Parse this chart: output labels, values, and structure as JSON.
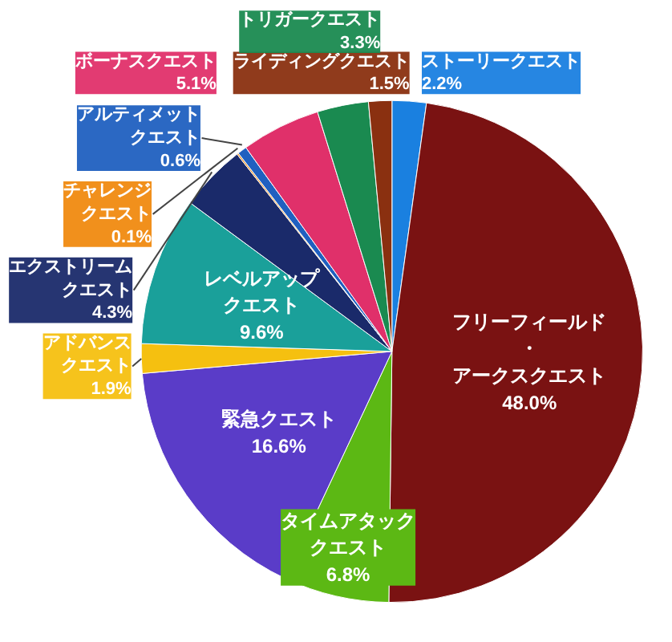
{
  "chart_data": {
    "type": "pie",
    "categories": [
      "ストーリークエスト",
      "フリーフィールド・アークスクエスト",
      "タイムアタッククエスト",
      "緊急クエスト",
      "アドバンスクエスト",
      "レベルアップクエスト",
      "エクストリームクエスト",
      "チャレンジクエスト",
      "アルティメットクエスト",
      "ボーナスクエスト",
      "トリガークエスト",
      "ライディングクエスト"
    ],
    "values": [
      2.2,
      48.0,
      6.8,
      16.6,
      1.9,
      9.6,
      4.3,
      0.1,
      0.6,
      5.1,
      3.3,
      1.5
    ],
    "value_labels": [
      "2.2%",
      "48.0%",
      "6.8%",
      "16.6%",
      "1.9%",
      "9.6%",
      "4.3%",
      "0.1%",
      "0.6%",
      "5.1%",
      "3.3%",
      "1.5%"
    ],
    "colors": [
      "#1a80e0",
      "#7a1212",
      "#5cb814",
      "#5a3cc8",
      "#f5c010",
      "#1aa09a",
      "#1a2a6a",
      "#f08a10",
      "#2060c0",
      "#e0306a",
      "#1a8a50",
      "#8a3010"
    ]
  }
}
